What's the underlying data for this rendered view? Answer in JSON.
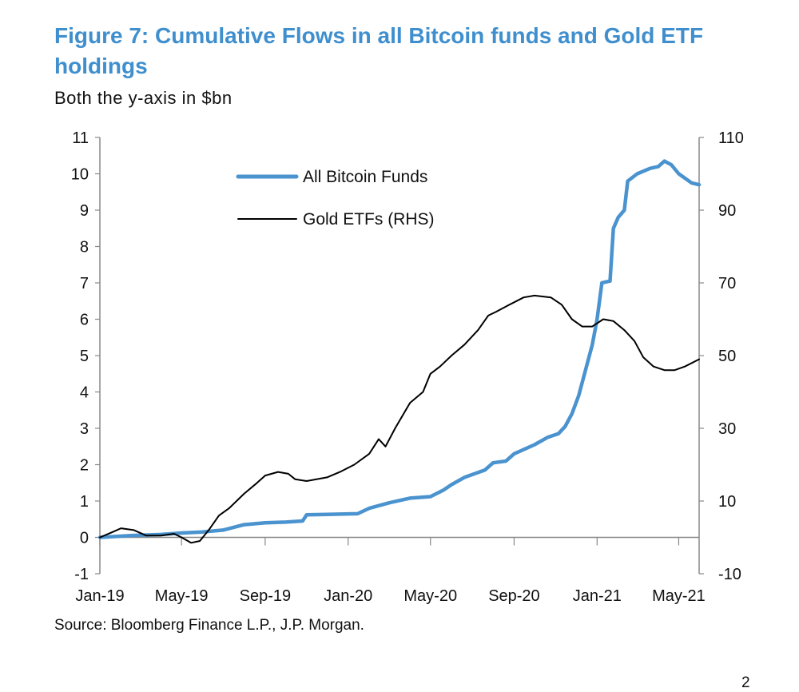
{
  "header": {
    "title": "Figure 7: Cumulative Flows in all Bitcoin funds and Gold ETF holdings",
    "subtitle": "Both the y-axis in $bn"
  },
  "footer": {
    "source": "Source: Bloomberg Finance L.P., J.P. Morgan.",
    "corner_mark": "2"
  },
  "colors": {
    "bitcoin": "#4a93cf",
    "gold": "#000000",
    "title": "#3f8fce",
    "axis": "#888888"
  },
  "chart_data": {
    "type": "line",
    "title": "Figure 7: Cumulative Flows in all Bitcoin funds and Gold ETF holdings",
    "subtitle": "Both the y-axis in $bn",
    "x_tick_labels": [
      "Jan-19",
      "May-19",
      "Sep-19",
      "Jan-20",
      "May-20",
      "Sep-20",
      "Jan-21",
      "May-21"
    ],
    "x_tick_dates": [
      "2019-01-01",
      "2019-05-01",
      "2019-09-01",
      "2020-01-01",
      "2020-05-01",
      "2020-09-01",
      "2021-01-01",
      "2021-05-01"
    ],
    "xlim": [
      "2019-01-01",
      "2021-05-31"
    ],
    "ylim_left": [
      -1,
      11
    ],
    "ylim_right": [
      -10,
      110
    ],
    "y_ticks_left": [
      "-1",
      "0",
      "1",
      "2",
      "3",
      "4",
      "5",
      "6",
      "7",
      "8",
      "9",
      "10",
      "11"
    ],
    "y_ticks_right": [
      "-10",
      "10",
      "30",
      "50",
      "70",
      "90",
      "110"
    ],
    "grid": false,
    "legend_position": "top-center",
    "series": [
      {
        "name": "All Bitcoin Funds",
        "axis": "left",
        "color": "#4a93cf",
        "points": [
          [
            "2019-01-01",
            0.0
          ],
          [
            "2019-02-15",
            0.05
          ],
          [
            "2019-04-01",
            0.08
          ],
          [
            "2019-05-01",
            0.12
          ],
          [
            "2019-06-01",
            0.15
          ],
          [
            "2019-07-01",
            0.2
          ],
          [
            "2019-08-01",
            0.35
          ],
          [
            "2019-09-01",
            0.4
          ],
          [
            "2019-10-01",
            0.42
          ],
          [
            "2019-10-26",
            0.45
          ],
          [
            "2019-11-01",
            0.62
          ],
          [
            "2019-12-01",
            0.63
          ],
          [
            "2020-01-15",
            0.65
          ],
          [
            "2020-02-01",
            0.8
          ],
          [
            "2020-03-01",
            0.95
          ],
          [
            "2020-04-01",
            1.08
          ],
          [
            "2020-05-01",
            1.12
          ],
          [
            "2020-05-20",
            1.3
          ],
          [
            "2020-06-01",
            1.45
          ],
          [
            "2020-06-20",
            1.65
          ],
          [
            "2020-07-20",
            1.85
          ],
          [
            "2020-08-01",
            2.05
          ],
          [
            "2020-08-20",
            2.1
          ],
          [
            "2020-09-01",
            2.3
          ],
          [
            "2020-10-01",
            2.55
          ],
          [
            "2020-10-20",
            2.75
          ],
          [
            "2020-11-05",
            2.85
          ],
          [
            "2020-11-15",
            3.05
          ],
          [
            "2020-11-25",
            3.4
          ],
          [
            "2020-12-05",
            3.9
          ],
          [
            "2020-12-15",
            4.6
          ],
          [
            "2020-12-25",
            5.3
          ],
          [
            "2021-01-01",
            6.0
          ],
          [
            "2021-01-08",
            7.0
          ],
          [
            "2021-01-20",
            7.05
          ],
          [
            "2021-01-25",
            8.5
          ],
          [
            "2021-02-01",
            8.8
          ],
          [
            "2021-02-10",
            9.0
          ],
          [
            "2021-02-15",
            9.8
          ],
          [
            "2021-03-01",
            10.0
          ],
          [
            "2021-03-20",
            10.15
          ],
          [
            "2021-04-01",
            10.2
          ],
          [
            "2021-04-10",
            10.35
          ],
          [
            "2021-04-20",
            10.25
          ],
          [
            "2021-05-01",
            10.0
          ],
          [
            "2021-05-20",
            9.75
          ],
          [
            "2021-05-31",
            9.7
          ]
        ]
      },
      {
        "name": "Gold ETFs (RHS)",
        "axis": "right",
        "color": "#000000",
        "points": [
          [
            "2019-01-01",
            0.0
          ],
          [
            "2019-01-20",
            1.5
          ],
          [
            "2019-02-01",
            2.5
          ],
          [
            "2019-02-20",
            2.0
          ],
          [
            "2019-03-10",
            0.5
          ],
          [
            "2019-04-01",
            0.5
          ],
          [
            "2019-04-20",
            1.0
          ],
          [
            "2019-05-01",
            0.0
          ],
          [
            "2019-05-15",
            -1.5
          ],
          [
            "2019-05-28",
            -1.0
          ],
          [
            "2019-06-10",
            2.0
          ],
          [
            "2019-06-25",
            6.0
          ],
          [
            "2019-07-10",
            8.0
          ],
          [
            "2019-08-01",
            12.0
          ],
          [
            "2019-08-20",
            15.0
          ],
          [
            "2019-09-01",
            17.0
          ],
          [
            "2019-09-20",
            18.0
          ],
          [
            "2019-10-05",
            17.5
          ],
          [
            "2019-10-15",
            16.0
          ],
          [
            "2019-11-01",
            15.5
          ],
          [
            "2019-12-01",
            16.5
          ],
          [
            "2019-12-20",
            18.0
          ],
          [
            "2020-01-10",
            20.0
          ],
          [
            "2020-02-01",
            23.0
          ],
          [
            "2020-02-15",
            27.0
          ],
          [
            "2020-02-25",
            25.0
          ],
          [
            "2020-03-10",
            30.0
          ],
          [
            "2020-04-01",
            37.0
          ],
          [
            "2020-04-20",
            40.0
          ],
          [
            "2020-05-01",
            45.0
          ],
          [
            "2020-05-15",
            47.0
          ],
          [
            "2020-06-01",
            50.0
          ],
          [
            "2020-06-20",
            53.0
          ],
          [
            "2020-07-10",
            57.0
          ],
          [
            "2020-07-25",
            61.0
          ],
          [
            "2020-08-05",
            62.0
          ],
          [
            "2020-08-20",
            63.5
          ],
          [
            "2020-09-15",
            66.0
          ],
          [
            "2020-10-01",
            66.5
          ],
          [
            "2020-10-25",
            66.0
          ],
          [
            "2020-11-10",
            64.0
          ],
          [
            "2020-11-25",
            60.0
          ],
          [
            "2020-12-10",
            58.0
          ],
          [
            "2020-12-25",
            58.0
          ],
          [
            "2021-01-10",
            60.0
          ],
          [
            "2021-01-25",
            59.5
          ],
          [
            "2021-02-10",
            57.0
          ],
          [
            "2021-02-25",
            54.0
          ],
          [
            "2021-03-10",
            49.5
          ],
          [
            "2021-03-25",
            47.0
          ],
          [
            "2021-04-10",
            46.0
          ],
          [
            "2021-04-25",
            46.0
          ],
          [
            "2021-05-10",
            47.0
          ],
          [
            "2021-05-31",
            49.0
          ]
        ]
      }
    ]
  }
}
